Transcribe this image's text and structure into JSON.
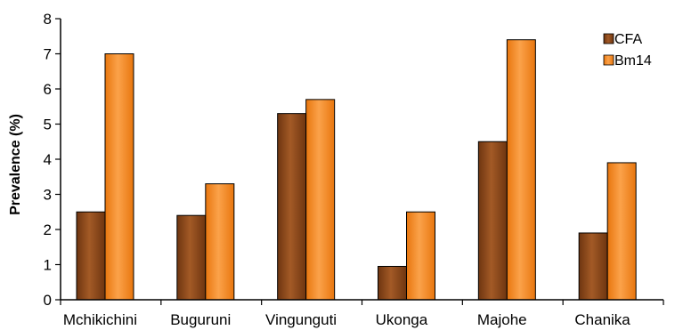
{
  "chart_data": {
    "type": "bar",
    "title": "",
    "xlabel": "",
    "ylabel": "Prevalence (%)",
    "ylim": [
      0,
      8
    ],
    "yticks": [
      "0",
      "1",
      "2",
      "3",
      "4",
      "5",
      "6",
      "7",
      "8"
    ],
    "grid": false,
    "legend_position": "top-right",
    "categories": [
      "Mchikichini",
      "Buguruni",
      "Vingunguti",
      "Ukonga",
      "Majohe",
      "Chanika"
    ],
    "series": [
      {
        "name": "CFA",
        "color": "#8B4513",
        "values": [
          2.5,
          2.4,
          5.3,
          0.95,
          4.5,
          1.9
        ]
      },
      {
        "name": "Bm14",
        "color": "#F0841A",
        "values": [
          7.0,
          3.3,
          5.7,
          2.5,
          7.4,
          3.9
        ]
      }
    ]
  }
}
